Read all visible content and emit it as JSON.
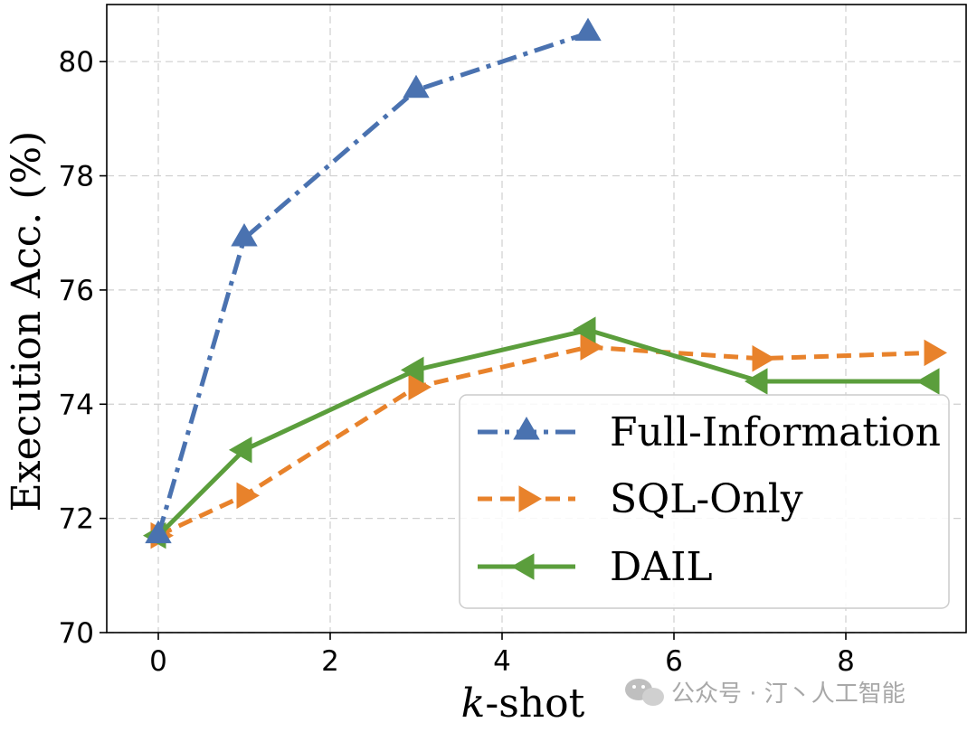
{
  "chart_data": {
    "type": "line",
    "xlabel_italic": "k",
    "xlabel_rest": "-shot",
    "ylabel": "Execution Acc. (%)",
    "xlim": [
      -0.6,
      9.4
    ],
    "ylim": [
      70,
      81
    ],
    "xticks": [
      0,
      2,
      4,
      6,
      8
    ],
    "yticks": [
      70,
      72,
      74,
      76,
      78,
      80
    ],
    "grid": true,
    "legend_position": "lower-right",
    "series": [
      {
        "name": "Full-Information",
        "color": "#4a72b0",
        "line_style": "dash-dot",
        "marker": "triangle-up",
        "x": [
          0,
          1,
          3,
          5
        ],
        "y": [
          71.7,
          76.9,
          79.5,
          80.5
        ]
      },
      {
        "name": "SQL-Only",
        "color": "#e8822b",
        "line_style": "dashed",
        "marker": "triangle-right",
        "x": [
          0,
          1,
          3,
          5,
          7,
          9
        ],
        "y": [
          71.7,
          72.4,
          74.3,
          75.0,
          74.8,
          74.9
        ]
      },
      {
        "name": "DAIL",
        "color": "#5b9e3c",
        "line_style": "solid",
        "marker": "triangle-left",
        "x": [
          0,
          1,
          3,
          5,
          7,
          9
        ],
        "y": [
          71.7,
          73.2,
          74.6,
          75.3,
          74.4,
          74.4
        ]
      }
    ]
  },
  "watermark": {
    "text": "公众号 · 汀丶人工智能",
    "icon": "wechat-icon"
  }
}
